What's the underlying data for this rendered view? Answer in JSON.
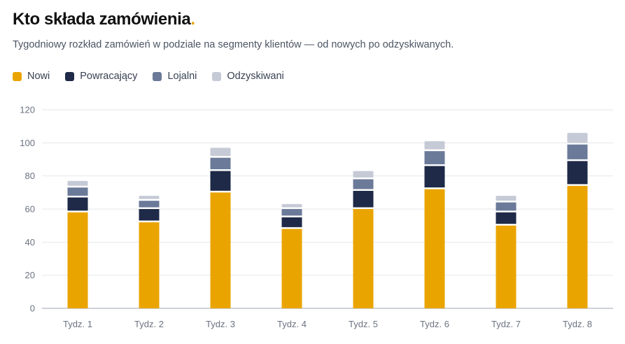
{
  "header": {
    "title": "Kto składa zamówienia",
    "title_accent": ".",
    "subtitle": "Tygodniowy rozkład zamówień w podziale na segmenty klientów — od nowych po odzyskiwanych."
  },
  "colors": {
    "accent": "#eaa400",
    "grid": "#e5e7eb",
    "axis": "#9ca3af"
  },
  "chart_data": {
    "type": "bar",
    "stacked": true,
    "categories": [
      "Tydz. 1",
      "Tydz. 2",
      "Tydz. 3",
      "Tydz. 4",
      "Tydz. 5",
      "Tydz. 6",
      "Tydz. 7",
      "Tydz. 8"
    ],
    "series": [
      {
        "name": "Nowi",
        "color": "#eaa400",
        "values": [
          58,
          52,
          70,
          48,
          60,
          72,
          50,
          74
        ]
      },
      {
        "name": "Powracający",
        "color": "#1e2a47",
        "values": [
          9,
          8,
          13,
          7,
          11,
          14,
          8,
          15
        ]
      },
      {
        "name": "Lojalni",
        "color": "#6b7a99",
        "values": [
          6,
          5,
          8,
          5,
          7,
          9,
          6,
          10
        ]
      },
      {
        "name": "Odzyskiwani",
        "color": "#c5cad6",
        "values": [
          4,
          3,
          6,
          3,
          5,
          6,
          4,
          7
        ]
      }
    ],
    "ylim": [
      0,
      120
    ],
    "yticks": [
      0,
      20,
      40,
      60,
      80,
      100,
      120
    ],
    "grid": true,
    "legend_position": "top-left"
  }
}
